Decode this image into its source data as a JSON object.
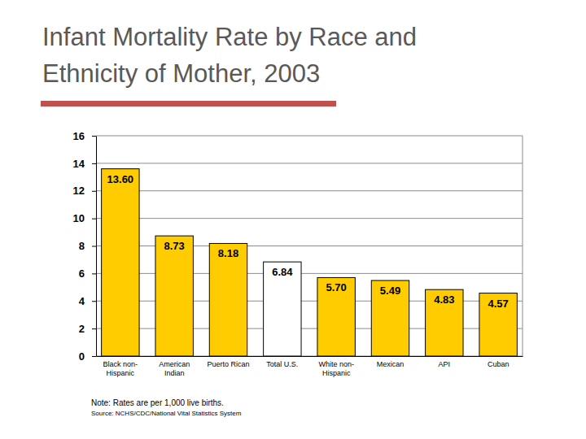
{
  "chart_data": {
    "type": "bar",
    "title": "Infant Mortality Rate by Race and Ethnicity of Mother, 2003",
    "categories": [
      "Black non-Hispanic",
      "American Indian",
      "Puerto Rican",
      "Total U.S.",
      "White non-Hispanic",
      "Mexican",
      "API",
      "Cuban"
    ],
    "values": [
      13.6,
      8.73,
      8.18,
      6.84,
      5.7,
      5.49,
      4.83,
      4.57
    ],
    "value_labels": [
      "13.60",
      "8.73",
      "8.18",
      "6.84",
      "5.70",
      "5.49",
      "4.83",
      "4.57"
    ],
    "colors": [
      "#ffcc00",
      "#ffcc00",
      "#ffcc00",
      "#ffffff",
      "#ffcc00",
      "#ffcc00",
      "#ffcc00",
      "#ffcc00"
    ],
    "ylim": [
      0,
      16
    ],
    "yticks": [
      0,
      2,
      4,
      6,
      8,
      10,
      12,
      14,
      16
    ],
    "grid": true,
    "data_labels": true,
    "annotations": [
      "Note: Rates are per 1,000 live births.",
      "Source: NCHS/CDC/National Vital Statistics System"
    ]
  }
}
